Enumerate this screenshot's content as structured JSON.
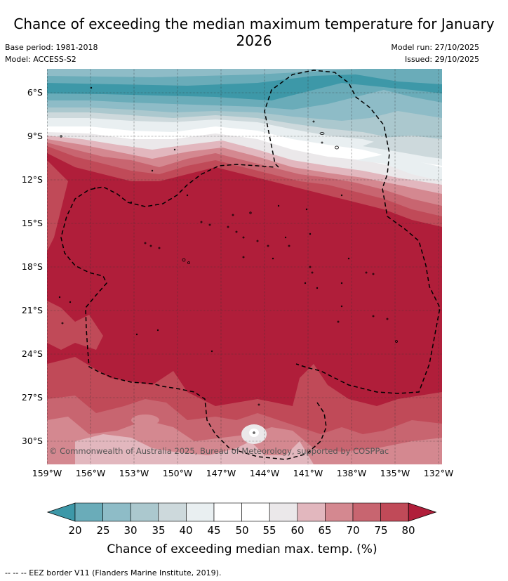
{
  "title": "Chance of exceeding the median maximum temperature for January 2026",
  "meta": {
    "base_period": "Base period: 1981-2018",
    "model": "Model: ACCESS-S2",
    "model_run": "Model run: 27/10/2025",
    "issued": "Issued: 29/10/2025"
  },
  "copyright": "© Commonwealth of Australia 2025, Bureau of Meteorology, supported by COSPPac",
  "latitude_labels": [
    "6°S",
    "9°S",
    "12°S",
    "15°S",
    "18°S",
    "21°S",
    "24°S",
    "27°S",
    "30°S"
  ],
  "longitude_labels": [
    "159°W",
    "156°W",
    "153°W",
    "150°W",
    "147°W",
    "144°W",
    "141°W",
    "138°W",
    "135°W",
    "132°W"
  ],
  "colorbar": {
    "ticks": [
      "20",
      "25",
      "30",
      "35",
      "40",
      "45",
      "50",
      "55",
      "60",
      "65",
      "70",
      "75",
      "80"
    ],
    "colors": [
      "#3d98a8",
      "#6aacb9",
      "#8ebcc7",
      "#abc8ce",
      "#cdd9dc",
      "#e9eff1",
      "#ffffff",
      "#ffffff",
      "#ebe8ea",
      "#e2b7be",
      "#d48890",
      "#c86570",
      "#c04a58",
      "#b01e3a"
    ],
    "label": "Chance of exceeding median max. temp. (%)"
  },
  "footnote": "-- -- -- EEZ border V11 (Flanders Marine Institute, 2019)."
}
